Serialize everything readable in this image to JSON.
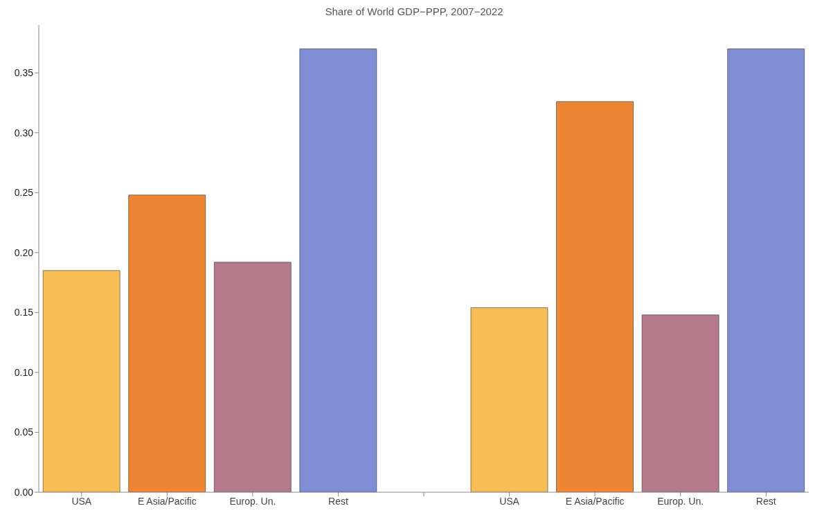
{
  "chart_data": {
    "type": "bar",
    "title": "Share of World GDP−PPP, 2007−2022",
    "categories": [
      "USA",
      "E Asia/Pacific",
      "Europ. Un.",
      "Rest",
      null,
      "USA",
      "E Asia/Pacific",
      "Europ. Un.",
      "Rest"
    ],
    "values": [
      0.185,
      0.248,
      0.192,
      0.37,
      null,
      0.154,
      0.326,
      0.148,
      0.37
    ],
    "colors": [
      "#f9bd55",
      "#ed8533",
      "#b57a8b",
      "#7f8dd5",
      "#ffffff",
      "#f9bd55",
      "#ed8533",
      "#b57a8b",
      "#7f8dd5"
    ],
    "ylim": [
      0,
      0.39
    ],
    "yticks": [
      {
        "value": 0,
        "label": "0.00"
      },
      {
        "value": 0.05,
        "label": "0.05"
      },
      {
        "value": 0.1,
        "label": "0.10"
      },
      {
        "value": 0.15,
        "label": "0.15"
      },
      {
        "value": 0.2,
        "label": "0.20"
      },
      {
        "value": 0.25,
        "label": "0.25"
      },
      {
        "value": 0.3,
        "label": "0.30"
      },
      {
        "value": 0.35,
        "label": "0.35"
      }
    ],
    "grid": false,
    "legend": false
  }
}
